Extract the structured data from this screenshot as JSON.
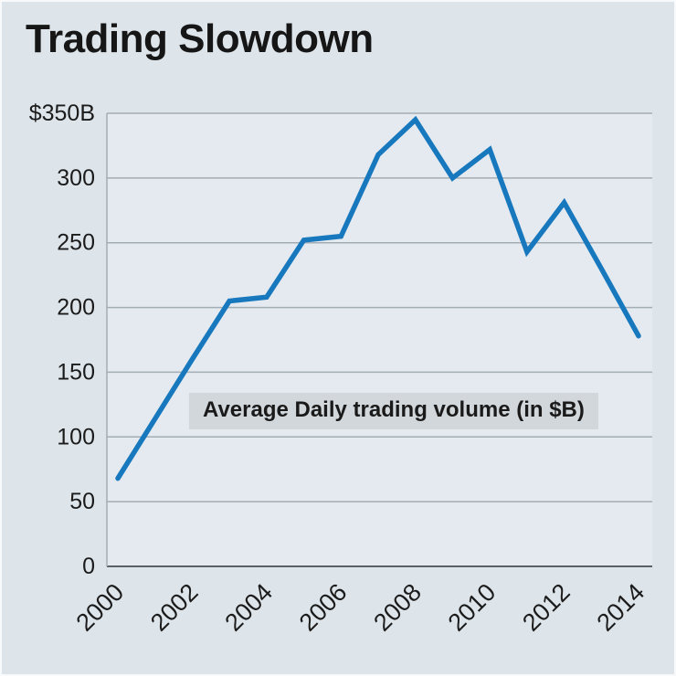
{
  "title": "Trading Slowdown",
  "chart_data": {
    "type": "line",
    "title": "Trading Slowdown",
    "x": [
      2000,
      2001,
      2002,
      2003,
      2004,
      2005,
      2006,
      2007,
      2008,
      2009,
      2010,
      2011,
      2012,
      2013,
      2014
    ],
    "values": [
      68,
      114,
      160,
      205,
      208,
      252,
      255,
      318,
      345,
      300,
      322,
      243,
      281,
      230,
      178
    ],
    "series_name": "Average Daily trading volume (in $B)",
    "annotation": "Average Daily trading volume (in $B)",
    "ylim": [
      0,
      350
    ],
    "ytick_interval": 50,
    "ytick_labels": [
      "0",
      "50",
      "100",
      "150",
      "200",
      "250",
      "300",
      "$350B"
    ],
    "xtick_labels": [
      "2000",
      "2002",
      "2004",
      "2006",
      "2008",
      "2010",
      "2012",
      "2014"
    ],
    "grid": true,
    "legend_position": "none"
  },
  "colors": {
    "background": "#dde5eb",
    "plot_background": "#e4eaef",
    "grid": "#a3adb5",
    "axis": "#5a6167",
    "line": "#1878be",
    "annotation_bg": "#d2d7db",
    "text": "#1b1b1b"
  }
}
